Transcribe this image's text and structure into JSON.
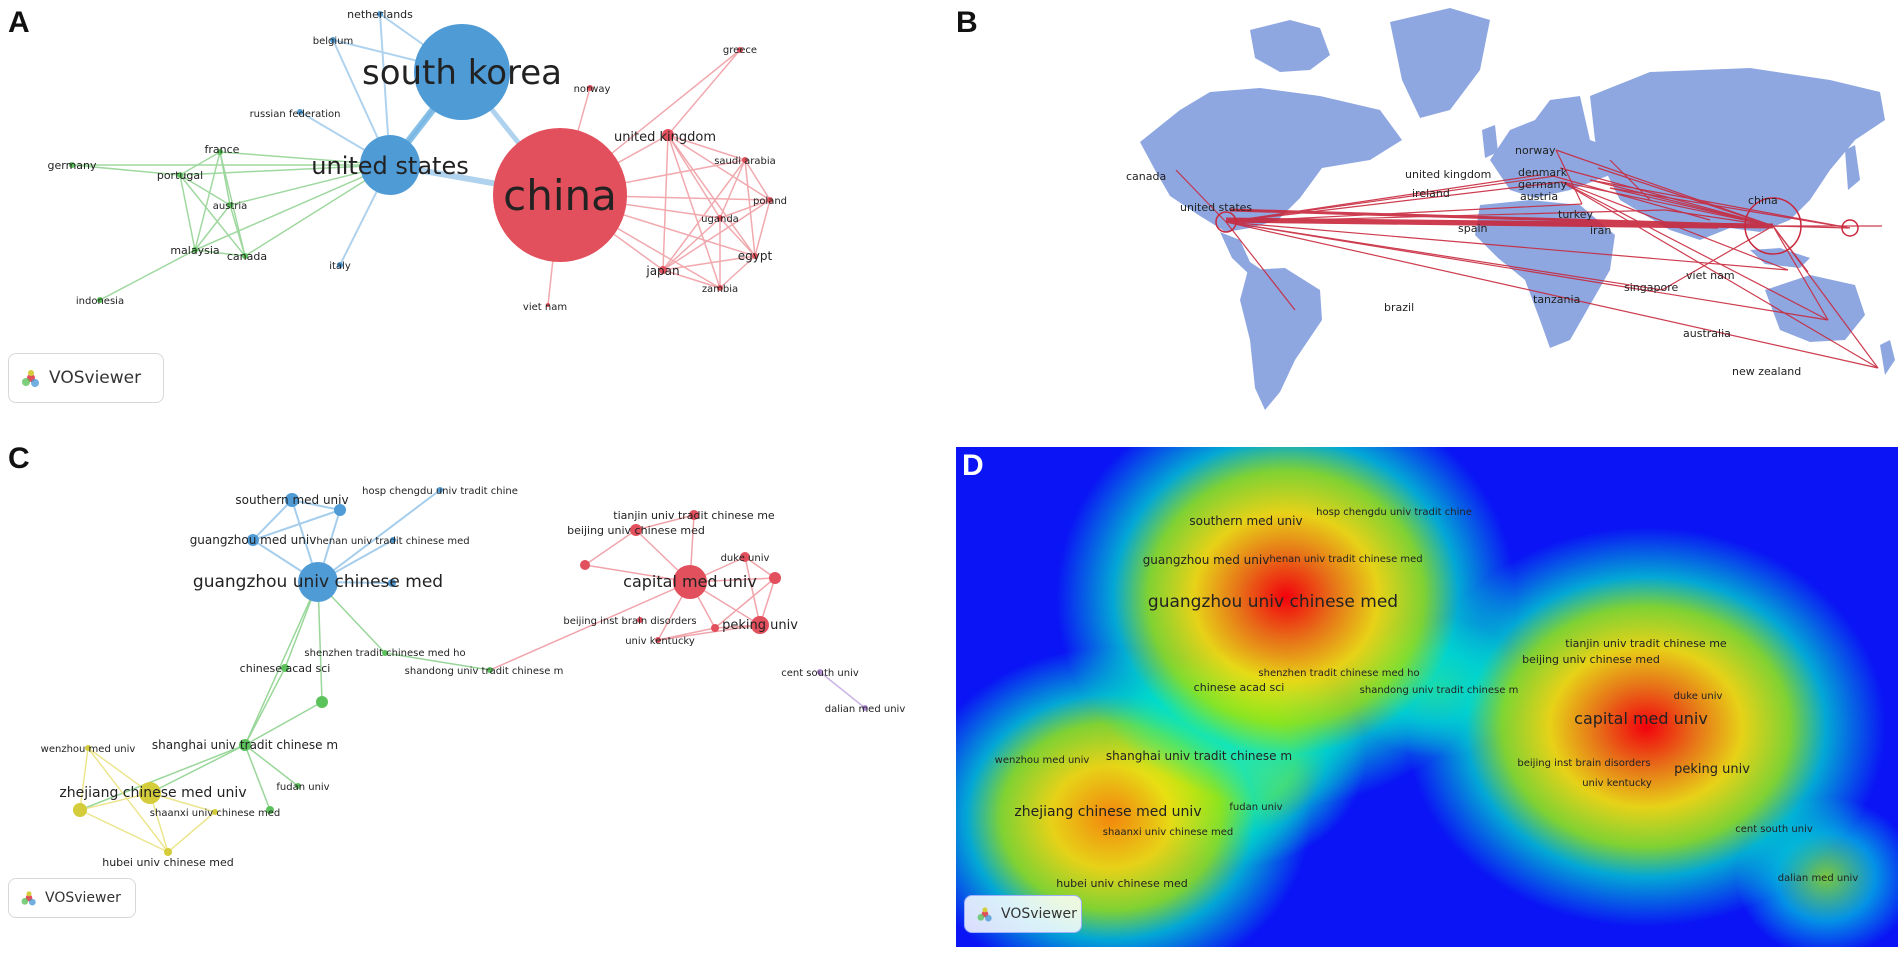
{
  "panels": {
    "a": {
      "letter": "A"
    },
    "b": {
      "letter": "B"
    },
    "c": {
      "letter": "C"
    },
    "d": {
      "letter": "D"
    }
  },
  "badge": {
    "label": "VOSviewer"
  },
  "colors": {
    "blue": "#4f9bd6",
    "red": "#e2505d",
    "green": "#5cc25c",
    "yellow": "#d4cc3a",
    "purple": "#b48fd6",
    "map_land": "#8fa7e0",
    "map_link": "#c8283c",
    "heat_bg": "#0a14f5"
  },
  "panel_a": {
    "nodes": [
      {
        "label": "china",
        "group": "red"
      },
      {
        "label": "south korea",
        "group": "blue"
      },
      {
        "label": "united states",
        "group": "blue"
      },
      {
        "label": "netherlands",
        "group": "blue"
      },
      {
        "label": "belgium",
        "group": "blue"
      },
      {
        "label": "russian federation",
        "group": "blue"
      },
      {
        "label": "italy",
        "group": "blue"
      },
      {
        "label": "france",
        "group": "green"
      },
      {
        "label": "germany",
        "group": "green"
      },
      {
        "label": "portugal",
        "group": "green"
      },
      {
        "label": "austria",
        "group": "green"
      },
      {
        "label": "malaysia",
        "group": "green"
      },
      {
        "label": "canada",
        "group": "green"
      },
      {
        "label": "indonesia",
        "group": "green"
      },
      {
        "label": "greece",
        "group": "red"
      },
      {
        "label": "norway",
        "group": "red"
      },
      {
        "label": "united kingdom",
        "group": "red"
      },
      {
        "label": "saudi arabia",
        "group": "red"
      },
      {
        "label": "poland",
        "group": "red"
      },
      {
        "label": "uganda",
        "group": "red"
      },
      {
        "label": "egypt",
        "group": "red"
      },
      {
        "label": "japan",
        "group": "red"
      },
      {
        "label": "zambia",
        "group": "red"
      },
      {
        "label": "viet nam",
        "group": "red"
      }
    ]
  },
  "panel_b": {
    "labels": [
      "canada",
      "united states",
      "united kingdom",
      "ireland",
      "norway",
      "denmark",
      "germany",
      "austria",
      "spain",
      "turkey",
      "iran",
      "china",
      "brazil",
      "tanzania",
      "singapore",
      "viet nam",
      "australia",
      "new zealand"
    ]
  },
  "panel_c": {
    "nodes": [
      {
        "label": "southern med univ",
        "group": "blue"
      },
      {
        "label": "hosp chengdu univ tradit chine",
        "group": "blue"
      },
      {
        "label": "guangzhou med univ",
        "group": "blue"
      },
      {
        "label": "henan univ tradit chinese med",
        "group": "blue"
      },
      {
        "label": "guangzhou univ chinese med",
        "group": "blue"
      },
      {
        "label": "shenzhen tradit chinese med ho",
        "group": "green"
      },
      {
        "label": "chinese acad sci",
        "group": "green"
      },
      {
        "label": "shandong univ tradit chinese m",
        "group": "green"
      },
      {
        "label": "shanghai univ tradit chinese m",
        "group": "green"
      },
      {
        "label": "fudan univ",
        "group": "green"
      },
      {
        "label": "wenzhou med univ",
        "group": "yellow"
      },
      {
        "label": "zhejiang chinese med univ",
        "group": "yellow"
      },
      {
        "label": "shaanxi univ chinese med",
        "group": "yellow"
      },
      {
        "label": "hubei univ chinese med",
        "group": "yellow"
      },
      {
        "label": "tianjin univ tradit chinese me",
        "group": "red"
      },
      {
        "label": "beijing univ chinese med",
        "group": "red"
      },
      {
        "label": "duke univ",
        "group": "red"
      },
      {
        "label": "capital med univ",
        "group": "red"
      },
      {
        "label": "beijing inst brain disorders",
        "group": "red"
      },
      {
        "label": "univ kentucky",
        "group": "red"
      },
      {
        "label": "peking univ",
        "group": "red"
      },
      {
        "label": "cent south univ",
        "group": "purple"
      },
      {
        "label": "dalian med univ",
        "group": "purple"
      }
    ]
  },
  "panel_d": {
    "labels": [
      "southern med univ",
      "hosp chengdu univ tradit chine",
      "guangzhou med univ",
      "henan univ tradit chinese med",
      "guangzhou univ chinese med",
      "shenzhen tradit chinese med ho",
      "chinese acad sci",
      "shandong univ tradit chinese m",
      "tianjin univ tradit chinese me",
      "beijing univ chinese med",
      "duke univ",
      "capital med univ",
      "wenzhou med univ",
      "shanghai univ tradit chinese m",
      "beijing inst brain disorders",
      "peking univ",
      "univ kentucky",
      "zhejiang chinese med univ",
      "fudan univ",
      "shaanxi univ chinese med",
      "cent south univ",
      "hubei univ chinese med",
      "dalian med univ"
    ]
  }
}
